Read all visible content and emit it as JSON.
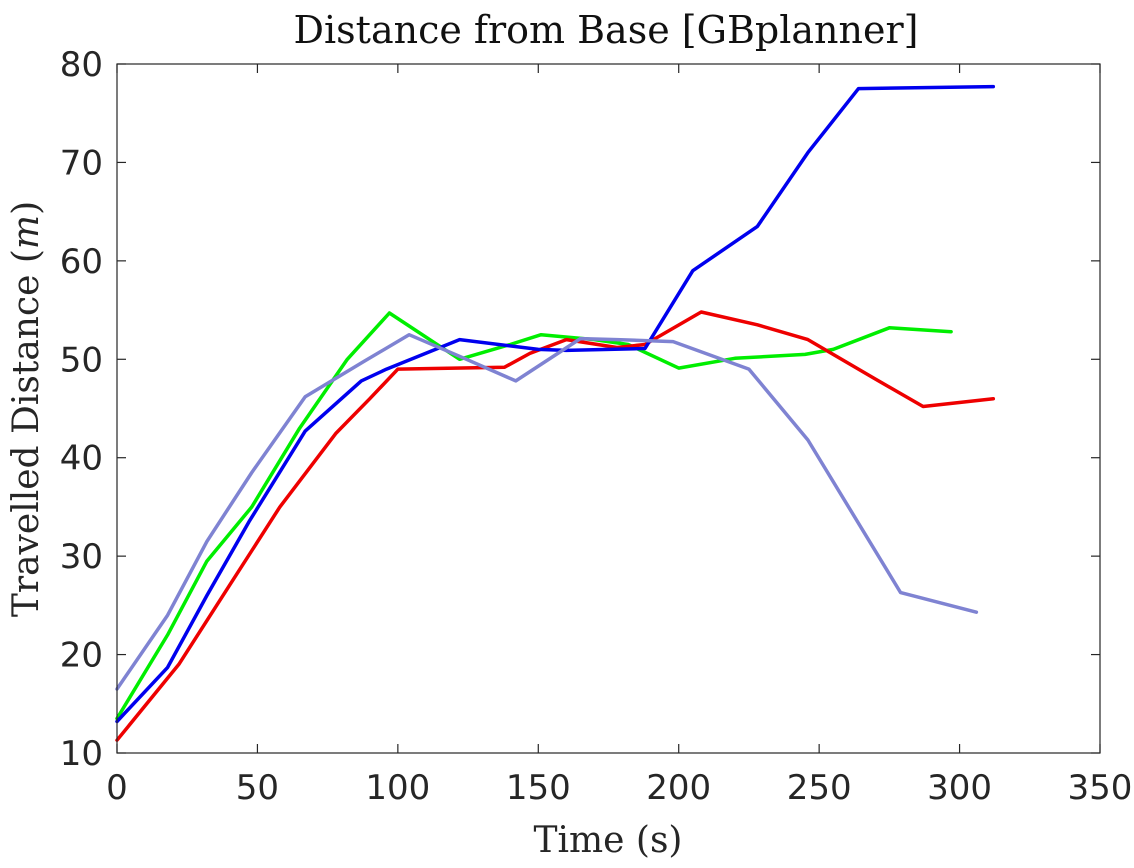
{
  "chart_data": {
    "type": "line",
    "title": "Distance from Base [GBplanner]",
    "xlabel": "Time (s)",
    "ylabel_main": "Travelled Distance (",
    "ylabel_var": "m",
    "ylabel_close": ")",
    "xlim": [
      0,
      350
    ],
    "ylim": [
      10,
      80
    ],
    "xticks": [
      0,
      50,
      100,
      150,
      200,
      250,
      300,
      350
    ],
    "yticks": [
      10,
      20,
      30,
      40,
      50,
      60,
      70,
      80
    ],
    "grid": false,
    "legend": "none",
    "series": [
      {
        "color": "#00ee00",
        "x": [
          0,
          18,
          32,
          48,
          65,
          82,
          97,
          122,
          140,
          151,
          170,
          182,
          200,
          220,
          245,
          255,
          275,
          297
        ],
        "y": [
          13.5,
          22,
          29.5,
          35,
          43,
          50,
          54.7,
          50,
          51.5,
          52.5,
          52,
          51.5,
          49.1,
          50.1,
          50.5,
          51,
          53.2,
          52.8
        ]
      },
      {
        "color": "#ee0000",
        "x": [
          0,
          22,
          40,
          58,
          78,
          90,
          100,
          138,
          147,
          160,
          178,
          188,
          208,
          228,
          246,
          270,
          287,
          312
        ],
        "y": [
          11.3,
          19,
          27,
          35,
          42.5,
          46,
          49,
          49.2,
          50.6,
          52,
          51.2,
          51.5,
          54.8,
          53.5,
          52,
          48,
          45.2,
          46
        ]
      },
      {
        "color": "#0000ee",
        "x": [
          0,
          18,
          32,
          47,
          67,
          87,
          96,
          122,
          150,
          160,
          188,
          205,
          228,
          246,
          264,
          312
        ],
        "y": [
          13.2,
          18.7,
          26,
          33.5,
          42.7,
          47.8,
          49,
          52,
          51,
          50.9,
          51.1,
          59,
          63.5,
          71,
          77.5,
          77.7
        ]
      },
      {
        "color": "#7f83d2",
        "x": [
          0,
          18,
          32,
          48,
          67,
          88,
          104,
          122,
          142,
          165,
          178,
          198,
          225,
          246,
          279,
          306
        ],
        "y": [
          16.5,
          24,
          31.5,
          38.5,
          46.2,
          49.8,
          52.5,
          50.3,
          47.8,
          52.1,
          52,
          51.8,
          49,
          41.8,
          26.3,
          24.3
        ]
      }
    ]
  }
}
